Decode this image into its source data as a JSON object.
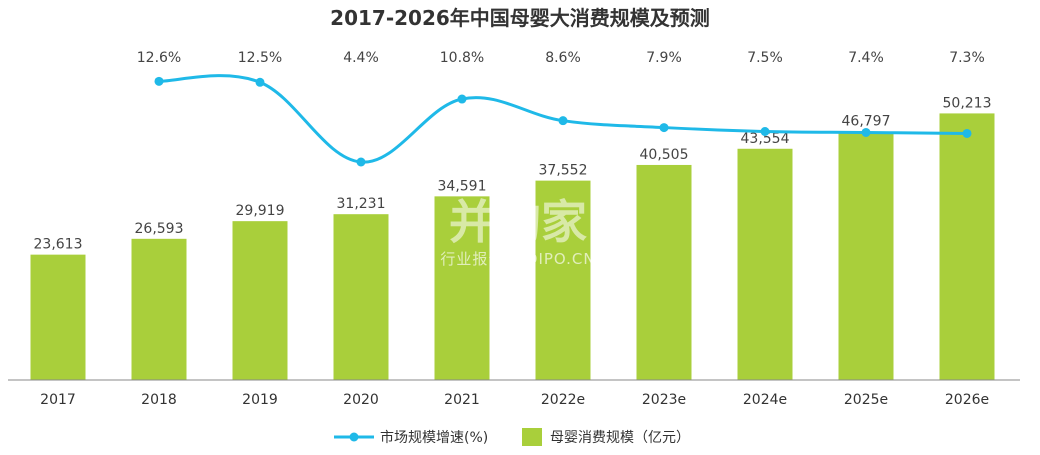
{
  "chart_data": {
    "type": "bar",
    "title": "2017-2026年中国母婴大消费规模及预测",
    "categories": [
      "2017",
      "2018",
      "2019",
      "2020",
      "2021",
      "2022e",
      "2023e",
      "2024e",
      "2025e",
      "2026e"
    ],
    "series": [
      {
        "name": "母婴消费规模（亿元）",
        "type": "bar",
        "color": "#a9cf3b",
        "values": [
          23613,
          26593,
          29919,
          31231,
          34591,
          37552,
          40505,
          43554,
          46797,
          50213
        ],
        "value_labels": [
          "23,613",
          "26,593",
          "29,919",
          "31,231",
          "34,591",
          "37,552",
          "40,505",
          "43,554",
          "46,797",
          "50,213"
        ]
      },
      {
        "name": "市场规模增速(%)",
        "type": "line",
        "color": "#1fb9e8",
        "values": [
          null,
          12.6,
          12.5,
          4.4,
          10.8,
          8.6,
          7.9,
          7.5,
          7.4,
          7.3
        ],
        "value_labels": [
          "12.6%",
          "12.5%",
          "4.4%",
          "10.8%",
          "8.6%",
          "7.9%",
          "7.5%",
          "7.4%",
          "7.3%"
        ]
      }
    ],
    "ylim": [
      0,
      55000
    ],
    "grid": false,
    "legend_position": "bottom-center"
  },
  "watermark": {
    "brand": "并购家",
    "sub": "行业报告 IPOIPO.CN"
  },
  "colors": {
    "bar": "#a9cf3b",
    "line": "#1fb9e8",
    "axis": "#888888"
  }
}
